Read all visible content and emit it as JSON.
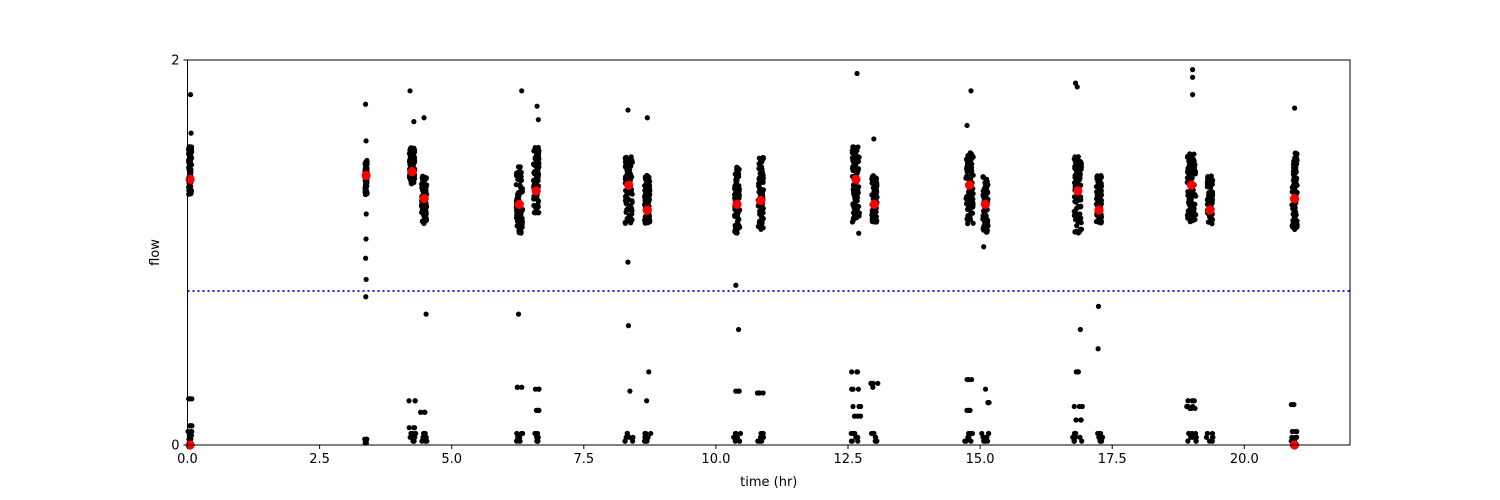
{
  "chart_data": {
    "type": "scatter",
    "xlabel": "time (hr)",
    "ylabel": "flow",
    "xlim": [
      0,
      22
    ],
    "ylim": [
      0,
      2
    ],
    "x_ticks": [
      0.0,
      2.5,
      5.0,
      7.5,
      10.0,
      12.5,
      15.0,
      17.5,
      20.0
    ],
    "x_tick_labels": [
      "0.0",
      "2.5",
      "5.0",
      "7.5",
      "10.0",
      "12.5",
      "15.0",
      "17.5",
      "20.0"
    ],
    "y_ticks": [
      0,
      2
    ],
    "y_tick_labels": [
      "0",
      "2"
    ],
    "threshold": {
      "y": 0.8,
      "color": "#0000ff",
      "style": "dotted"
    },
    "colors": {
      "raw": "#000000",
      "mean": "#ff0000"
    },
    "clusters": [
      {
        "x": 0.05,
        "w": 0.06,
        "high_lo": 1.3,
        "high_hi": 1.55,
        "mean": 1.38,
        "high_out": [
          1.62,
          1.82
        ],
        "low": [
          0.01,
          0.03,
          0.05,
          0.07,
          0.1,
          0.24
        ]
      },
      {
        "x": 3.38,
        "w": 0.04,
        "high_lo": 1.3,
        "high_hi": 1.48,
        "mean": 1.4,
        "high_out": [
          1.58,
          1.77,
          1.2,
          1.07,
          0.97,
          0.86,
          0.77
        ],
        "low": [
          0.01,
          0.03
        ]
      },
      {
        "x": 4.25,
        "w": 0.1,
        "high_lo": 1.35,
        "high_hi": 1.55,
        "mean": 1.42,
        "high_out": [
          1.68,
          1.84
        ],
        "low": [
          0.02,
          0.04,
          0.06,
          0.09,
          0.23
        ]
      },
      {
        "x": 4.48,
        "w": 0.1,
        "high_lo": 1.15,
        "high_hi": 1.4,
        "mean": 1.28,
        "high_out": [
          1.7,
          0.68
        ],
        "low": [
          0.02,
          0.04,
          0.06,
          0.17
        ]
      },
      {
        "x": 6.28,
        "w": 0.12,
        "high_lo": 1.1,
        "high_hi": 1.45,
        "mean": 1.25,
        "high_out": [
          1.84,
          0.68
        ],
        "low": [
          0.02,
          0.04,
          0.06,
          0.3
        ]
      },
      {
        "x": 6.6,
        "w": 0.1,
        "high_lo": 1.2,
        "high_hi": 1.55,
        "mean": 1.32,
        "high_out": [
          1.76,
          1.69
        ],
        "low": [
          0.02,
          0.04,
          0.06,
          0.18,
          0.29
        ]
      },
      {
        "x": 8.35,
        "w": 0.14,
        "high_lo": 1.15,
        "high_hi": 1.5,
        "mean": 1.35,
        "high_out": [
          1.74,
          0.95,
          0.62,
          0.28
        ],
        "low": [
          0.02,
          0.04,
          0.06
        ]
      },
      {
        "x": 8.7,
        "w": 0.1,
        "high_lo": 1.15,
        "high_hi": 1.4,
        "mean": 1.22,
        "high_out": [
          1.7,
          0.38,
          0.23
        ],
        "low": [
          0.02,
          0.04,
          0.06
        ]
      },
      {
        "x": 10.4,
        "w": 0.1,
        "high_lo": 1.1,
        "high_hi": 1.45,
        "mean": 1.25,
        "high_out": [
          0.83,
          0.6
        ],
        "low": [
          0.02,
          0.04,
          0.06,
          0.28
        ]
      },
      {
        "x": 10.85,
        "w": 0.1,
        "high_lo": 1.12,
        "high_hi": 1.5,
        "mean": 1.27,
        "high_out": [
          0.27
        ],
        "low": [
          0.02,
          0.04,
          0.06,
          0.27
        ]
      },
      {
        "x": 12.65,
        "w": 0.14,
        "high_lo": 1.15,
        "high_hi": 1.55,
        "mean": 1.38,
        "high_out": [
          1.93,
          1.1
        ],
        "low": [
          0.02,
          0.04,
          0.06,
          0.15,
          0.2,
          0.29,
          0.38
        ]
      },
      {
        "x": 13.0,
        "w": 0.1,
        "high_lo": 1.15,
        "high_hi": 1.4,
        "mean": 1.25,
        "high_out": [
          1.59,
          0.3
        ],
        "low": [
          0.02,
          0.04,
          0.06,
          0.32
        ]
      },
      {
        "x": 14.8,
        "w": 0.14,
        "high_lo": 1.15,
        "high_hi": 1.52,
        "mean": 1.35,
        "high_out": [
          1.84,
          1.66
        ],
        "low": [
          0.02,
          0.04,
          0.06,
          0.18,
          0.34
        ]
      },
      {
        "x": 15.1,
        "w": 0.1,
        "high_lo": 1.1,
        "high_hi": 1.4,
        "mean": 1.25,
        "high_out": [
          1.03,
          0.29
        ],
        "low": [
          0.02,
          0.04,
          0.06,
          0.22
        ]
      },
      {
        "x": 16.85,
        "w": 0.14,
        "high_lo": 1.1,
        "high_hi": 1.5,
        "mean": 1.32,
        "high_out": [
          1.86,
          1.88,
          0.6
        ],
        "low": [
          0.02,
          0.04,
          0.06,
          0.13,
          0.2,
          0.38
        ]
      },
      {
        "x": 17.25,
        "w": 0.1,
        "high_lo": 1.15,
        "high_hi": 1.4,
        "mean": 1.22,
        "high_out": [
          0.72,
          0.5
        ],
        "low": [
          0.02,
          0.04,
          0.06
        ]
      },
      {
        "x": 19.0,
        "w": 0.16,
        "high_lo": 1.15,
        "high_hi": 1.52,
        "mean": 1.35,
        "high_out": [
          1.82,
          1.91,
          1.95
        ],
        "low": [
          0.02,
          0.04,
          0.06,
          0.19,
          0.2,
          0.23
        ]
      },
      {
        "x": 19.35,
        "w": 0.1,
        "high_lo": 1.15,
        "high_hi": 1.4,
        "mean": 1.22,
        "high_out": [],
        "low": [
          0.02,
          0.04,
          0.06
        ]
      },
      {
        "x": 20.95,
        "w": 0.1,
        "high_lo": 1.12,
        "high_hi": 1.52,
        "mean": 1.28,
        "high_out": [
          1.75
        ],
        "low": [
          0.0,
          0.02,
          0.04,
          0.07,
          0.21
        ]
      }
    ]
  }
}
